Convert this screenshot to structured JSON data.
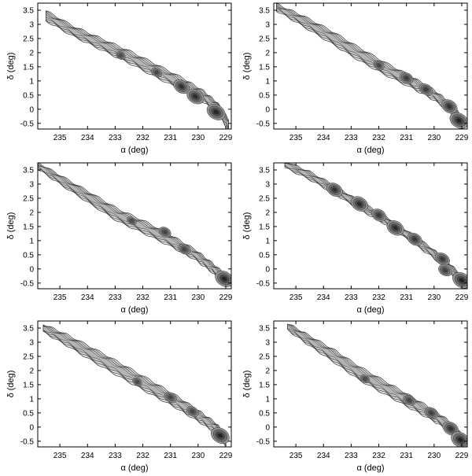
{
  "figure": {
    "panel_count": 6,
    "layout": "3 rows x 2 columns",
    "colors": {
      "axis": "#000000",
      "contour_fill_light": "#e4e4e4",
      "contour_line": "#333333",
      "dense_core": "#111111"
    }
  },
  "chart_data": [
    {
      "type": "heatmap",
      "subtype": "contour density map of a tidal stream",
      "xlabel": "α (deg)",
      "ylabel": "δ (deg)",
      "xlim": [
        235.8,
        228.8
      ],
      "ylim": [
        -0.7,
        3.75
      ],
      "x_inverted": true,
      "xticks": [
        235,
        234,
        233,
        232,
        231,
        230,
        229
      ],
      "yticks": [
        -0.5,
        0,
        0.5,
        1,
        1.5,
        2,
        2.5,
        3,
        3.5
      ],
      "xtick_labels": [
        "235",
        "234",
        "233",
        "232",
        "231",
        "230",
        "229"
      ],
      "ytick_labels": [
        "-0.5",
        "0",
        "0.5",
        "1",
        "1.5",
        "2",
        "2.5",
        "3",
        "3.5"
      ],
      "stream_track": {
        "x": [
          235.5,
          234.5,
          233.5,
          232.5,
          231.5,
          230.5,
          229.8,
          229.3,
          228.9
        ],
        "y": [
          3.3,
          2.75,
          2.3,
          1.85,
          1.35,
          0.85,
          0.45,
          0.05,
          -0.55
        ]
      },
      "width_taper": [
        0.18,
        0.18,
        0.2,
        0.22,
        0.23,
        0.22,
        0.2,
        0.18,
        0.2
      ],
      "clumps": [
        {
          "x": 230.6,
          "y": 0.8,
          "strength": 0.8
        },
        {
          "x": 230.1,
          "y": 0.45,
          "strength": 0.9
        },
        {
          "x": 229.35,
          "y": -0.1,
          "strength": 1.0
        },
        {
          "x": 231.5,
          "y": 1.3,
          "strength": 0.4
        },
        {
          "x": 232.8,
          "y": 1.9,
          "strength": 0.3
        }
      ]
    },
    {
      "type": "heatmap",
      "subtype": "contour density map of a tidal stream",
      "xlabel": "α (deg)",
      "ylabel": "δ (deg)",
      "xlim": [
        235.8,
        228.8
      ],
      "ylim": [
        -0.7,
        3.75
      ],
      "x_inverted": true,
      "xticks": [
        235,
        234,
        233,
        232,
        231,
        230,
        229
      ],
      "yticks": [
        -0.5,
        0,
        0.5,
        1,
        1.5,
        2,
        2.5,
        3,
        3.5
      ],
      "xtick_labels": [
        "235",
        "234",
        "233",
        "232",
        "231",
        "230",
        "229"
      ],
      "ytick_labels": [
        "-0.5",
        "0",
        "0.5",
        "1",
        "1.5",
        "2",
        "2.5",
        "3",
        "3.5"
      ],
      "stream_track": {
        "x": [
          235.7,
          234.8,
          233.8,
          232.8,
          231.8,
          230.8,
          230.0,
          229.4,
          229.0
        ],
        "y": [
          3.6,
          3.15,
          2.6,
          2.0,
          1.45,
          0.95,
          0.5,
          0.05,
          -0.45
        ]
      },
      "width_taper": [
        0.12,
        0.18,
        0.22,
        0.23,
        0.22,
        0.2,
        0.18,
        0.17,
        0.2
      ],
      "clumps": [
        {
          "x": 231.0,
          "y": 1.1,
          "strength": 0.6
        },
        {
          "x": 230.3,
          "y": 0.7,
          "strength": 0.6
        },
        {
          "x": 229.45,
          "y": 0.1,
          "strength": 0.8
        },
        {
          "x": 229.1,
          "y": -0.4,
          "strength": 1.0
        },
        {
          "x": 232.0,
          "y": 1.55,
          "strength": 0.4
        }
      ]
    },
    {
      "type": "heatmap",
      "subtype": "contour density map of a tidal stream",
      "xlabel": "α (deg)",
      "ylabel": "δ (deg)",
      "xlim": [
        235.8,
        228.8
      ],
      "ylim": [
        -0.7,
        3.75
      ],
      "x_inverted": true,
      "xticks": [
        235,
        234,
        233,
        232,
        231,
        230,
        229
      ],
      "yticks": [
        -0.5,
        0,
        0.5,
        1,
        1.5,
        2,
        2.5,
        3,
        3.5
      ],
      "xtick_labels": [
        "235",
        "234",
        "233",
        "232",
        "231",
        "230",
        "229"
      ],
      "ytick_labels": [
        "-0.5",
        "0",
        "0.5",
        "1",
        "1.5",
        "2",
        "2.5",
        "3",
        "3.5"
      ],
      "stream_track": {
        "x": [
          235.8,
          234.9,
          233.9,
          232.9,
          231.9,
          230.9,
          230.1,
          229.5,
          229.0
        ],
        "y": [
          3.65,
          3.1,
          2.5,
          1.9,
          1.45,
          0.95,
          0.5,
          0.05,
          -0.4
        ]
      },
      "width_taper": [
        0.12,
        0.16,
        0.2,
        0.22,
        0.22,
        0.2,
        0.18,
        0.17,
        0.2
      ],
      "clumps": [
        {
          "x": 231.2,
          "y": 1.3,
          "strength": 0.5
        },
        {
          "x": 230.5,
          "y": 0.7,
          "strength": 0.5
        },
        {
          "x": 229.05,
          "y": -0.35,
          "strength": 1.0
        },
        {
          "x": 232.4,
          "y": 1.7,
          "strength": 0.3
        }
      ]
    },
    {
      "type": "heatmap",
      "subtype": "contour density map of a tidal stream",
      "xlabel": "α (deg)",
      "ylabel": "δ (deg)",
      "xlim": [
        235.8,
        228.8
      ],
      "ylim": [
        -0.7,
        3.75
      ],
      "x_inverted": true,
      "xticks": [
        235,
        234,
        233,
        232,
        231,
        230,
        229
      ],
      "yticks": [
        -0.5,
        0,
        0.5,
        1,
        1.5,
        2,
        2.5,
        3,
        3.5
      ],
      "xtick_labels": [
        "235",
        "234",
        "233",
        "232",
        "231",
        "230",
        "229"
      ],
      "ytick_labels": [
        "-0.5",
        "0",
        "0.5",
        "1",
        "1.5",
        "2",
        "2.5",
        "3",
        "3.5"
      ],
      "stream_track": {
        "x": [
          235.4,
          234.5,
          233.6,
          232.7,
          231.8,
          230.9,
          230.1,
          229.5,
          229.0
        ],
        "y": [
          3.7,
          3.3,
          2.8,
          2.25,
          1.75,
          1.15,
          0.6,
          0.1,
          -0.4
        ]
      },
      "width_taper": [
        0.12,
        0.14,
        0.15,
        0.15,
        0.15,
        0.15,
        0.15,
        0.15,
        0.18
      ],
      "clumps": [
        {
          "x": 233.6,
          "y": 2.8,
          "strength": 0.8
        },
        {
          "x": 232.7,
          "y": 2.3,
          "strength": 0.9
        },
        {
          "x": 232.0,
          "y": 1.9,
          "strength": 0.7
        },
        {
          "x": 231.4,
          "y": 1.45,
          "strength": 0.9
        },
        {
          "x": 230.7,
          "y": 1.05,
          "strength": 0.7
        },
        {
          "x": 229.7,
          "y": 0.35,
          "strength": 0.7
        },
        {
          "x": 229.6,
          "y": -0.05,
          "strength": 0.6
        },
        {
          "x": 229.0,
          "y": -0.4,
          "strength": 1.0
        }
      ]
    },
    {
      "type": "heatmap",
      "subtype": "contour density map of a tidal stream",
      "xlabel": "α (deg)",
      "ylabel": "δ (deg)",
      "xlim": [
        235.8,
        228.8
      ],
      "ylim": [
        -0.7,
        3.75
      ],
      "x_inverted": true,
      "xticks": [
        235,
        234,
        233,
        232,
        231,
        230,
        229
      ],
      "yticks": [
        -0.5,
        0,
        0.5,
        1,
        1.5,
        2,
        2.5,
        3,
        3.5
      ],
      "xtick_labels": [
        "235",
        "234",
        "233",
        "232",
        "231",
        "230",
        "229"
      ],
      "ytick_labels": [
        "-0.5",
        "0",
        "0.5",
        "1",
        "1.5",
        "2",
        "2.5",
        "3",
        "3.5"
      ],
      "stream_track": {
        "x": [
          235.6,
          234.7,
          233.7,
          232.7,
          231.7,
          230.8,
          230.0,
          229.4,
          229.0
        ],
        "y": [
          3.5,
          3.05,
          2.5,
          1.95,
          1.4,
          0.9,
          0.4,
          0.0,
          -0.45
        ]
      },
      "width_taper": [
        0.14,
        0.2,
        0.24,
        0.25,
        0.24,
        0.22,
        0.2,
        0.18,
        0.2
      ],
      "clumps": [
        {
          "x": 231.0,
          "y": 1.05,
          "strength": 0.5
        },
        {
          "x": 230.2,
          "y": 0.55,
          "strength": 0.5
        },
        {
          "x": 229.2,
          "y": -0.3,
          "strength": 1.0
        },
        {
          "x": 232.2,
          "y": 1.6,
          "strength": 0.3
        }
      ]
    },
    {
      "type": "heatmap",
      "subtype": "contour density map of a tidal stream",
      "xlabel": "α (deg)",
      "ylabel": "δ (deg)",
      "xlim": [
        235.8,
        228.8
      ],
      "ylim": [
        -0.7,
        3.75
      ],
      "x_inverted": true,
      "xticks": [
        235,
        234,
        233,
        232,
        231,
        230,
        229
      ],
      "yticks": [
        -0.5,
        0,
        0.5,
        1,
        1.5,
        2,
        2.5,
        3,
        3.5
      ],
      "xtick_labels": [
        "235",
        "234",
        "233",
        "232",
        "231",
        "230",
        "229"
      ],
      "ytick_labels": [
        "-0.5",
        "0",
        "0.5",
        "1",
        "1.5",
        "2",
        "2.5",
        "3",
        "3.5"
      ],
      "stream_track": {
        "x": [
          235.3,
          234.5,
          233.6,
          232.7,
          231.7,
          230.8,
          230.0,
          229.4,
          229.0
        ],
        "y": [
          3.55,
          3.05,
          2.5,
          1.9,
          1.35,
          0.85,
          0.4,
          0.0,
          -0.45
        ]
      },
      "width_taper": [
        0.12,
        0.18,
        0.22,
        0.24,
        0.23,
        0.22,
        0.2,
        0.18,
        0.2
      ],
      "clumps": [
        {
          "x": 230.9,
          "y": 0.95,
          "strength": 0.5
        },
        {
          "x": 230.1,
          "y": 0.5,
          "strength": 0.6
        },
        {
          "x": 229.4,
          "y": -0.05,
          "strength": 0.8
        },
        {
          "x": 229.05,
          "y": -0.45,
          "strength": 1.0
        },
        {
          "x": 232.5,
          "y": 1.7,
          "strength": 0.3
        }
      ]
    }
  ]
}
